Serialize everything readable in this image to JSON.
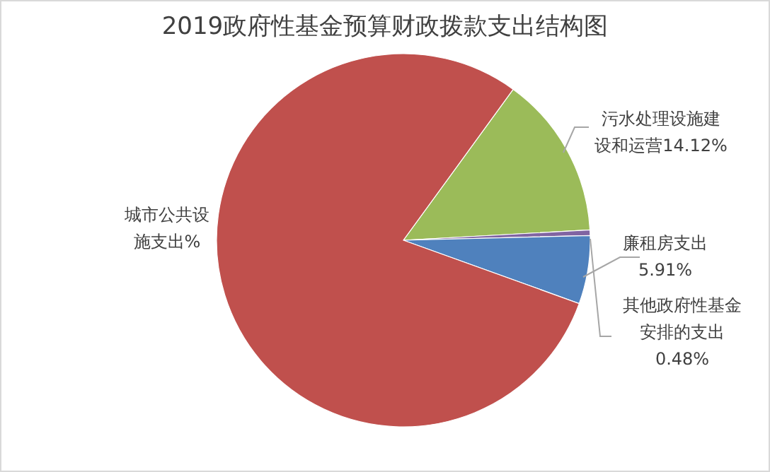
{
  "chart_data": {
    "type": "pie",
    "title": "2019政府性基金预算财政拨款支出结构图",
    "categories": [
      "污水处理设施建设和运营",
      "其他政府性基金安排的支出",
      "廉租房支出",
      "城市公共设施支出"
    ],
    "values": [
      14.12,
      0.48,
      5.91,
      79.49
    ],
    "value_labels": [
      "14.12%",
      "0.48%",
      "5.91%",
      "%"
    ],
    "colors": [
      "#9bbb59",
      "#8064a2",
      "#4f81bd",
      "#c0504d"
    ]
  }
}
